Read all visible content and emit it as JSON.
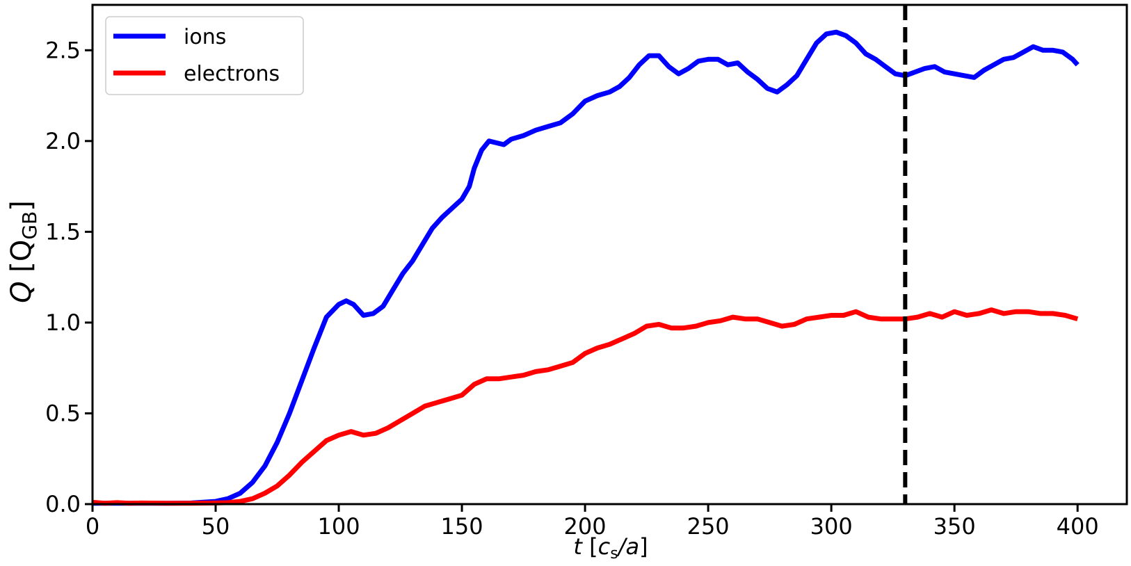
{
  "chart_data": {
    "type": "line",
    "xlabel": {
      "var": "t",
      "unit_open": " [",
      "unit_var": "c",
      "unit_sub": "s",
      "unit_rest": "/a",
      "unit_close": "]"
    },
    "ylabel": {
      "var": "Q",
      "unit_open": " [Q",
      "unit_sub": "GB",
      "unit_close": "]"
    },
    "xlim": [
      0,
      420
    ],
    "ylim": [
      0,
      2.75
    ],
    "xticks": [
      "0",
      "50",
      "100",
      "150",
      "200",
      "250",
      "300",
      "350",
      "400"
    ],
    "yticks": [
      "0.0",
      "0.5",
      "1.0",
      "1.5",
      "2.0",
      "2.5"
    ],
    "grid": false,
    "legend_position": "top-left",
    "vline": {
      "x": 330,
      "style": "dashed",
      "color": "#000000"
    },
    "series": [
      {
        "name": "ions",
        "color": "#0000ff",
        "points": [
          [
            0,
            0.005
          ],
          [
            10,
            0.005
          ],
          [
            20,
            0.005
          ],
          [
            30,
            0.005
          ],
          [
            40,
            0.006
          ],
          [
            50,
            0.015
          ],
          [
            55,
            0.03
          ],
          [
            60,
            0.06
          ],
          [
            65,
            0.12
          ],
          [
            70,
            0.21
          ],
          [
            75,
            0.34
          ],
          [
            80,
            0.5
          ],
          [
            85,
            0.68
          ],
          [
            90,
            0.86
          ],
          [
            95,
            1.03
          ],
          [
            100,
            1.1
          ],
          [
            103,
            1.12
          ],
          [
            106,
            1.1
          ],
          [
            110,
            1.04
          ],
          [
            114,
            1.05
          ],
          [
            118,
            1.09
          ],
          [
            122,
            1.18
          ],
          [
            126,
            1.27
          ],
          [
            130,
            1.34
          ],
          [
            134,
            1.43
          ],
          [
            138,
            1.52
          ],
          [
            142,
            1.58
          ],
          [
            146,
            1.63
          ],
          [
            150,
            1.68
          ],
          [
            153,
            1.75
          ],
          [
            155,
            1.85
          ],
          [
            158,
            1.95
          ],
          [
            161,
            2.0
          ],
          [
            164,
            1.99
          ],
          [
            167,
            1.98
          ],
          [
            170,
            2.01
          ],
          [
            175,
            2.03
          ],
          [
            180,
            2.06
          ],
          [
            185,
            2.08
          ],
          [
            190,
            2.1
          ],
          [
            195,
            2.15
          ],
          [
            200,
            2.22
          ],
          [
            205,
            2.25
          ],
          [
            210,
            2.27
          ],
          [
            214,
            2.3
          ],
          [
            218,
            2.35
          ],
          [
            222,
            2.42
          ],
          [
            226,
            2.47
          ],
          [
            230,
            2.47
          ],
          [
            234,
            2.41
          ],
          [
            238,
            2.37
          ],
          [
            242,
            2.4
          ],
          [
            246,
            2.44
          ],
          [
            250,
            2.45
          ],
          [
            254,
            2.45
          ],
          [
            258,
            2.42
          ],
          [
            262,
            2.43
          ],
          [
            266,
            2.38
          ],
          [
            270,
            2.34
          ],
          [
            274,
            2.29
          ],
          [
            278,
            2.27
          ],
          [
            282,
            2.31
          ],
          [
            286,
            2.36
          ],
          [
            290,
            2.45
          ],
          [
            294,
            2.54
          ],
          [
            298,
            2.59
          ],
          [
            302,
            2.6
          ],
          [
            306,
            2.58
          ],
          [
            310,
            2.54
          ],
          [
            314,
            2.48
          ],
          [
            318,
            2.45
          ],
          [
            322,
            2.41
          ],
          [
            326,
            2.37
          ],
          [
            330,
            2.36
          ],
          [
            334,
            2.38
          ],
          [
            338,
            2.4
          ],
          [
            342,
            2.41
          ],
          [
            346,
            2.38
          ],
          [
            350,
            2.37
          ],
          [
            354,
            2.36
          ],
          [
            358,
            2.35
          ],
          [
            362,
            2.39
          ],
          [
            366,
            2.42
          ],
          [
            370,
            2.45
          ],
          [
            374,
            2.46
          ],
          [
            378,
            2.49
          ],
          [
            382,
            2.52
          ],
          [
            386,
            2.5
          ],
          [
            390,
            2.5
          ],
          [
            394,
            2.49
          ],
          [
            398,
            2.45
          ],
          [
            400,
            2.42
          ]
        ]
      },
      {
        "name": "electrons",
        "color": "#ff0000",
        "points": [
          [
            0,
            0.01
          ],
          [
            5,
            0.005
          ],
          [
            10,
            0.008
          ],
          [
            15,
            0.005
          ],
          [
            20,
            0.006
          ],
          [
            30,
            0.005
          ],
          [
            40,
            0.005
          ],
          [
            50,
            0.006
          ],
          [
            55,
            0.008
          ],
          [
            60,
            0.015
          ],
          [
            65,
            0.03
          ],
          [
            70,
            0.06
          ],
          [
            75,
            0.1
          ],
          [
            80,
            0.16
          ],
          [
            85,
            0.23
          ],
          [
            90,
            0.29
          ],
          [
            95,
            0.35
          ],
          [
            100,
            0.38
          ],
          [
            105,
            0.4
          ],
          [
            110,
            0.38
          ],
          [
            115,
            0.39
          ],
          [
            120,
            0.42
          ],
          [
            125,
            0.46
          ],
          [
            130,
            0.5
          ],
          [
            135,
            0.54
          ],
          [
            140,
            0.56
          ],
          [
            145,
            0.58
          ],
          [
            150,
            0.6
          ],
          [
            155,
            0.66
          ],
          [
            160,
            0.69
          ],
          [
            165,
            0.69
          ],
          [
            170,
            0.7
          ],
          [
            175,
            0.71
          ],
          [
            180,
            0.73
          ],
          [
            185,
            0.74
          ],
          [
            190,
            0.76
          ],
          [
            195,
            0.78
          ],
          [
            200,
            0.83
          ],
          [
            205,
            0.86
          ],
          [
            210,
            0.88
          ],
          [
            215,
            0.91
          ],
          [
            220,
            0.94
          ],
          [
            225,
            0.98
          ],
          [
            230,
            0.99
          ],
          [
            235,
            0.97
          ],
          [
            240,
            0.97
          ],
          [
            245,
            0.98
          ],
          [
            250,
            1.0
          ],
          [
            255,
            1.01
          ],
          [
            260,
            1.03
          ],
          [
            265,
            1.02
          ],
          [
            270,
            1.02
          ],
          [
            275,
            1.0
          ],
          [
            280,
            0.98
          ],
          [
            285,
            0.99
          ],
          [
            290,
            1.02
          ],
          [
            295,
            1.03
          ],
          [
            300,
            1.04
          ],
          [
            305,
            1.04
          ],
          [
            310,
            1.06
          ],
          [
            315,
            1.03
          ],
          [
            320,
            1.02
          ],
          [
            325,
            1.02
          ],
          [
            330,
            1.02
          ],
          [
            335,
            1.03
          ],
          [
            340,
            1.05
          ],
          [
            345,
            1.03
          ],
          [
            350,
            1.06
          ],
          [
            355,
            1.04
          ],
          [
            360,
            1.05
          ],
          [
            365,
            1.07
          ],
          [
            370,
            1.05
          ],
          [
            375,
            1.06
          ],
          [
            380,
            1.06
          ],
          [
            385,
            1.05
          ],
          [
            390,
            1.05
          ],
          [
            395,
            1.04
          ],
          [
            400,
            1.02
          ]
        ]
      }
    ]
  }
}
